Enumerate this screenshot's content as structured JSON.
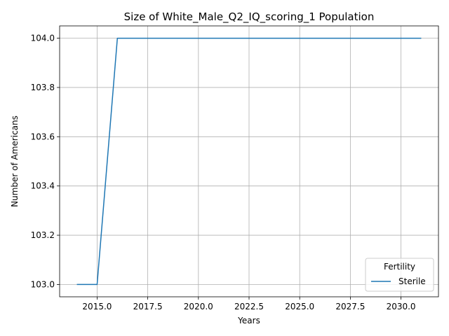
{
  "chart_data": {
    "type": "line",
    "title": "Size of White_Male_Q2_IQ_scoring_1 Population",
    "xlabel": "Years",
    "ylabel": "Number of Americans",
    "xlim": [
      2013.15,
      2031.85
    ],
    "ylim": [
      102.95,
      104.05
    ],
    "xticks": [
      2015.0,
      2017.5,
      2020.0,
      2022.5,
      2025.0,
      2027.5,
      2030.0
    ],
    "xtick_labels": [
      "2015.0",
      "2017.5",
      "2020.0",
      "2022.5",
      "2025.0",
      "2027.5",
      "2030.0"
    ],
    "yticks": [
      103.0,
      103.2,
      103.4,
      103.6,
      103.8,
      104.0
    ],
    "ytick_labels": [
      "103.0",
      "103.2",
      "103.4",
      "103.6",
      "103.8",
      "104.0"
    ],
    "grid": true,
    "legend": {
      "title": "Fertility",
      "placement": "bottom-right"
    },
    "series": [
      {
        "name": "Sterile",
        "color": "#1f77b4",
        "x": [
          2014,
          2015,
          2016,
          2017,
          2018,
          2019,
          2020,
          2021,
          2022,
          2023,
          2024,
          2025,
          2026,
          2027,
          2028,
          2029,
          2030,
          2031
        ],
        "y": [
          103,
          103,
          104,
          104,
          104,
          104,
          104,
          104,
          104,
          104,
          104,
          104,
          104,
          104,
          104,
          104,
          104,
          104
        ]
      }
    ]
  }
}
